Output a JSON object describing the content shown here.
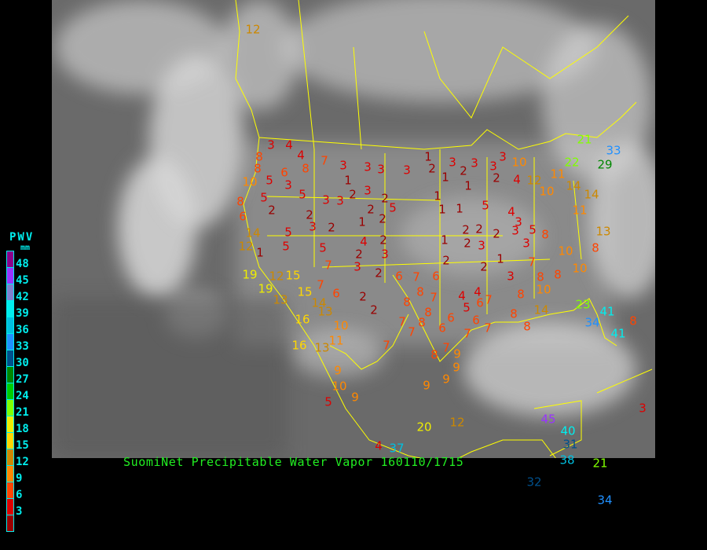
{
  "title": "SuomiNet Precipitable Water Vapor 160110/1715",
  "legend": {
    "title": "PWV",
    "unit": "mm",
    "labels": [
      "48",
      "45",
      "42",
      "39",
      "36",
      "33",
      "30",
      "27",
      "24",
      "21",
      "18",
      "15",
      "12",
      "9",
      "6",
      "3"
    ],
    "colors": [
      "#8b008b",
      "#9933ff",
      "#8080d0",
      "#00eeee",
      "#00c0e0",
      "#2090ff",
      "#00508c",
      "#008800",
      "#00cc00",
      "#80ff00",
      "#eeee00",
      "#ffd700",
      "#cc8800",
      "#ff8800",
      "#ff4400",
      "#dd0000",
      "#990000"
    ]
  },
  "border_color": "#ffff00",
  "stations": [
    "12",
    "3",
    "4",
    "4",
    "8",
    "7",
    "3",
    "3",
    "3",
    "3",
    "1",
    "2",
    "3",
    "2",
    "3",
    "3",
    "3",
    "10",
    "1",
    "1",
    "2",
    "4",
    "12",
    "10",
    "11",
    "14",
    "14",
    "22",
    "29",
    "33",
    "21",
    "8",
    "8",
    "5",
    "6",
    "3",
    "5",
    "10",
    "5",
    "2",
    "8",
    "6",
    "3",
    "3",
    "1",
    "2",
    "3",
    "2",
    "5",
    "2",
    "1",
    "2",
    "2",
    "3",
    "2",
    "5",
    "5",
    "5",
    "4",
    "2",
    "2",
    "3",
    "3",
    "2",
    "7",
    "1",
    "1",
    "1",
    "5",
    "4",
    "3",
    "2",
    "2",
    "2",
    "1",
    "2",
    "3",
    "2",
    "1",
    "2",
    "3",
    "5",
    "8",
    "3",
    "7",
    "3",
    "8",
    "8",
    "10",
    "10",
    "10",
    "8",
    "13",
    "11",
    "14",
    "12",
    "1",
    "19",
    "19",
    "12",
    "15",
    "13",
    "15",
    "7",
    "14",
    "6",
    "2",
    "2",
    "16",
    "13",
    "10",
    "11",
    "16",
    "13",
    "6",
    "7",
    "6",
    "8",
    "8",
    "7",
    "8",
    "7",
    "7",
    "8",
    "6",
    "6",
    "4",
    "4",
    "5",
    "6",
    "6",
    "7",
    "7",
    "7",
    "8",
    "9",
    "9",
    "9",
    "9",
    "7",
    "7",
    "8",
    "8",
    "8",
    "14",
    "23",
    "34",
    "41",
    "41",
    "8",
    "9",
    "10",
    "9",
    "5",
    "20",
    "12",
    "4",
    "37",
    "45",
    "40",
    "31",
    "38",
    "21",
    "32",
    "34",
    "3"
  ]
}
